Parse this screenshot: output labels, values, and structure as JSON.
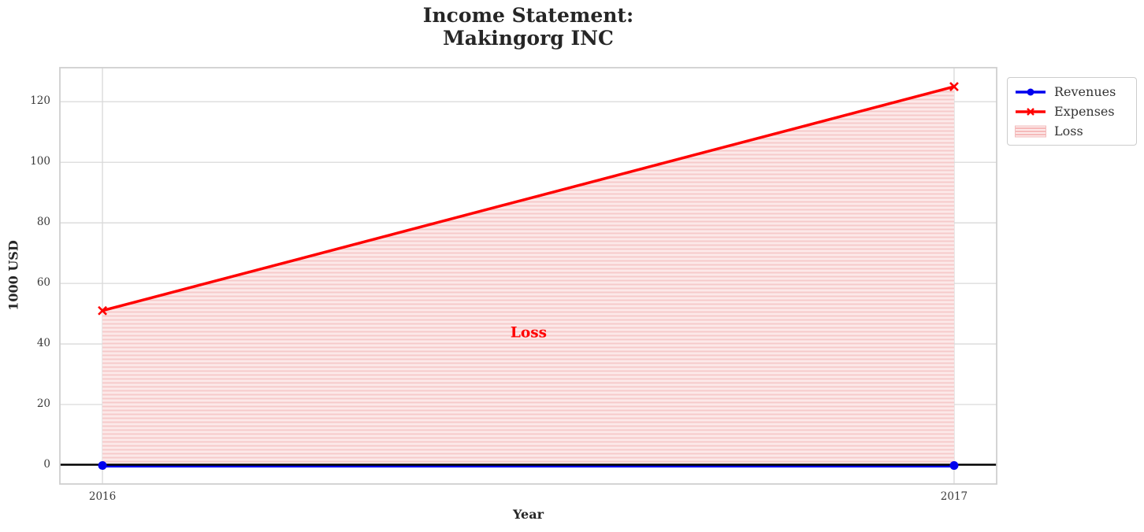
{
  "chart_data": {
    "type": "line",
    "title_lines": [
      "Income Statement:",
      "Makingorg INC"
    ],
    "xlabel": "Year",
    "ylabel": "1000 USD",
    "x": [
      2016,
      2017
    ],
    "x_tick_labels": [
      "2016",
      "2017"
    ],
    "y_ticks": [
      0,
      20,
      40,
      60,
      80,
      100,
      120
    ],
    "xlim": [
      2015.95,
      2017.05
    ],
    "ylim": [
      -6.25,
      131.25
    ],
    "grid": true,
    "series": [
      {
        "name": "Revenues",
        "values": [
          0,
          0
        ],
        "color": "#0000ee",
        "marker": "circle",
        "linewidth": 4
      },
      {
        "name": "Expenses",
        "values": [
          51,
          125
        ],
        "color": "#ff0000",
        "marker": "x",
        "linewidth": 3.5
      }
    ],
    "fill_between": {
      "label": "Loss",
      "between": [
        "Revenues",
        "Expenses"
      ],
      "face_color": "#fce9e9",
      "hatch_color": "#f6caca",
      "hatch": "-",
      "annotation": {
        "text": "Loss",
        "x": 2016.5,
        "y": 44,
        "color": "#ff0000"
      }
    },
    "axhline": {
      "y": 0,
      "color": "#000000",
      "linewidth": 2.5
    },
    "legend": {
      "position": "upper-right-outside",
      "entries": [
        "Revenues",
        "Expenses",
        "Loss"
      ]
    },
    "style": {
      "grid_color": "#d9d9d9",
      "border_color": "#cfcfcf",
      "tick_color": "#3a3a3a",
      "title_color": "#262626",
      "background": "#ffffff"
    }
  }
}
